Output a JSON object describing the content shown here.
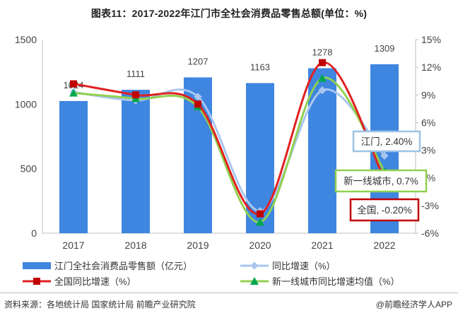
{
  "title": "图表11：2017-2022年江门市全社会消费品零售总额(单位：%)",
  "footer": {
    "source": "资料来源：各地统计局 国家统计局 前瞻产业研究院",
    "brand": "@前瞻经济学人APP"
  },
  "colors": {
    "bar": "#3f86e0",
    "jiangmen_line": "#a9c6f0",
    "national_line": "#e02020",
    "national_marker": "#c00000",
    "tier1_line": "#92d050",
    "tier1_marker": "#00a651"
  },
  "chart_data": {
    "type": "bar",
    "categories": [
      "2017",
      "2018",
      "2019",
      "2020",
      "2021",
      "2022"
    ],
    "y_left": {
      "ylim": [
        0,
        1500
      ],
      "ticks": [
        0,
        500,
        1000,
        1500
      ]
    },
    "y_right": {
      "ylim": [
        -6,
        15
      ],
      "ticks": [
        "-6%",
        "-3%",
        "0%",
        "3%",
        "6%",
        "9%",
        "12%",
        "15%"
      ],
      "tick_values": [
        -6,
        -3,
        0,
        3,
        6,
        9,
        12,
        15
      ]
    },
    "grid": false,
    "legend_position": "bottom",
    "series": [
      {
        "name": "江门全社会消费品零售额（亿元）",
        "type": "bar",
        "axis": "left",
        "values": [
          1024,
          1111,
          1207,
          1163,
          1278,
          1309
        ],
        "labels": [
          "1024",
          "1111",
          "1207",
          "1163",
          "1278",
          "1309"
        ]
      },
      {
        "name": "同比增速（%）",
        "type": "line",
        "axis": "right",
        "values": [
          9.3,
          8.4,
          8.8,
          -3.6,
          9.5,
          2.4
        ]
      },
      {
        "name": "全国同比增速（%）",
        "type": "line",
        "axis": "right",
        "values": [
          10.2,
          9.0,
          8.0,
          -3.9,
          12.5,
          -0.2
        ]
      },
      {
        "name": "新一线城市同比增速均值（%）",
        "type": "line",
        "axis": "right",
        "values": [
          9.2,
          8.6,
          7.7,
          -4.8,
          10.8,
          0.7
        ]
      }
    ],
    "annotations": [
      {
        "text": "江门, 2.40%",
        "series": 1
      },
      {
        "text": "新一线城市, 0.7%",
        "series": 3
      },
      {
        "text": "全国, -0.20%",
        "series": 2
      }
    ]
  }
}
